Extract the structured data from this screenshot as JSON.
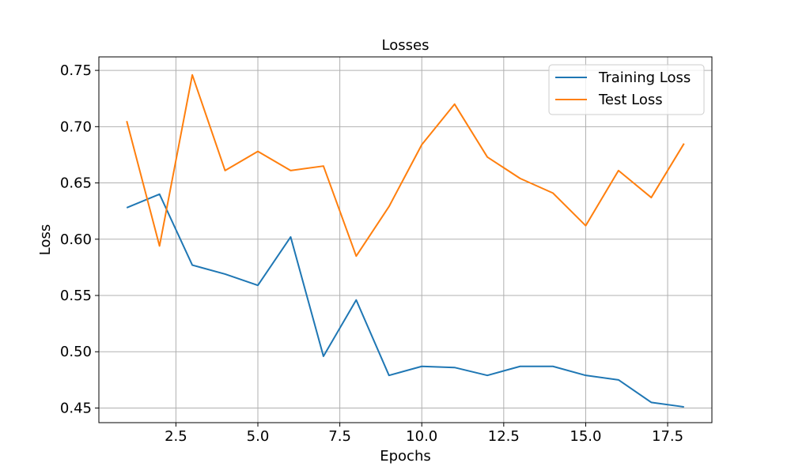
{
  "chart_data": {
    "type": "line",
    "title": "Losses",
    "xlabel": "Epochs",
    "ylabel": "Loss",
    "x": [
      1,
      2,
      3,
      4,
      5,
      6,
      7,
      8,
      9,
      10,
      11,
      12,
      13,
      14,
      15,
      16,
      17,
      18
    ],
    "xlim": [
      0.15,
      18.85
    ],
    "ylim": [
      0.437,
      0.762
    ],
    "xticks": [
      2.5,
      5.0,
      7.5,
      10.0,
      12.5,
      15.0,
      17.5
    ],
    "xtick_labels": [
      "2.5",
      "5.0",
      "7.5",
      "10.0",
      "12.5",
      "15.0",
      "17.5"
    ],
    "yticks": [
      0.45,
      0.5,
      0.55,
      0.6,
      0.65,
      0.7,
      0.75
    ],
    "ytick_labels": [
      "0.45",
      "0.50",
      "0.55",
      "0.60",
      "0.65",
      "0.70",
      "0.75"
    ],
    "grid": true,
    "legend_position": "top-right",
    "series": [
      {
        "name": "Training Loss",
        "color": "#1f77b4",
        "values": [
          0.628,
          0.64,
          0.577,
          0.569,
          0.559,
          0.602,
          0.496,
          0.546,
          0.479,
          0.487,
          0.486,
          0.479,
          0.487,
          0.487,
          0.479,
          0.475,
          0.455,
          0.451
        ]
      },
      {
        "name": "Test Loss",
        "color": "#ff7f0e",
        "values": [
          0.705,
          0.594,
          0.746,
          0.661,
          0.678,
          0.661,
          0.665,
          0.585,
          0.629,
          0.684,
          0.72,
          0.673,
          0.654,
          0.641,
          0.612,
          0.661,
          0.637,
          0.685
        ]
      }
    ]
  }
}
